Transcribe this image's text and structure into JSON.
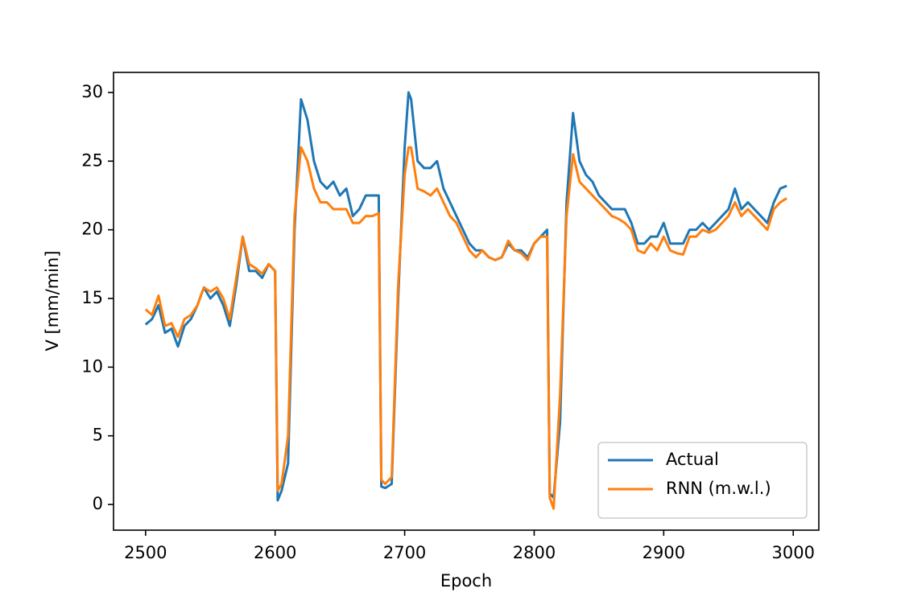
{
  "chart_data": {
    "type": "line",
    "x_label": "Epoch",
    "y_label": "V [mm/min]",
    "x": [
      2500,
      2505,
      2510,
      2515,
      2520,
      2525,
      2530,
      2535,
      2540,
      2545,
      2550,
      2555,
      2560,
      2565,
      2570,
      2575,
      2580,
      2585,
      2590,
      2595,
      2600,
      2602,
      2605,
      2610,
      2615,
      2620,
      2625,
      2630,
      2635,
      2640,
      2645,
      2650,
      2655,
      2660,
      2665,
      2670,
      2675,
      2680,
      2682,
      2685,
      2690,
      2695,
      2700,
      2703,
      2705,
      2710,
      2715,
      2720,
      2725,
      2730,
      2735,
      2740,
      2745,
      2750,
      2755,
      2760,
      2765,
      2770,
      2775,
      2780,
      2785,
      2790,
      2795,
      2800,
      2805,
      2810,
      2812,
      2815,
      2820,
      2825,
      2830,
      2835,
      2840,
      2845,
      2850,
      2855,
      2860,
      2865,
      2870,
      2875,
      2880,
      2885,
      2890,
      2895,
      2900,
      2905,
      2910,
      2915,
      2920,
      2925,
      2930,
      2935,
      2940,
      2945,
      2950,
      2955,
      2960,
      2965,
      2970,
      2975,
      2980,
      2985,
      2990,
      2995
    ],
    "series": [
      {
        "name": "Actual",
        "color": "#1f77b4",
        "values": [
          13.1,
          13.5,
          14.5,
          12.5,
          12.8,
          11.5,
          13,
          13.5,
          14.5,
          15.8,
          15,
          15.5,
          14.5,
          13,
          16,
          19.5,
          17,
          17,
          16.5,
          17.5,
          17,
          0.3,
          1,
          3,
          20,
          29.5,
          28,
          25,
          23.5,
          23,
          23.5,
          22.5,
          23,
          21,
          21.5,
          22.5,
          22.5,
          22.5,
          1.3,
          1.2,
          1.5,
          15,
          26,
          30,
          29.5,
          25,
          24.5,
          24.5,
          25,
          23,
          22,
          21,
          20,
          19,
          18.5,
          18.5,
          18,
          17.8,
          18,
          19,
          18.5,
          18.5,
          18,
          19,
          19.5,
          20,
          0.8,
          0.5,
          6,
          22,
          28.5,
          25,
          24,
          23.5,
          22.5,
          22,
          21.5,
          21.5,
          21.5,
          20.5,
          19,
          19,
          19.5,
          19.5,
          20.5,
          19,
          19,
          19,
          20,
          20,
          20.5,
          20,
          20.5,
          21,
          21.5,
          23,
          21.5,
          22,
          21.5,
          21,
          20.5,
          22,
          23,
          23.2
        ]
      },
      {
        "name": "RNN (m.w.l.)",
        "color": "#ff7f0e",
        "values": [
          14.2,
          13.8,
          15.2,
          13,
          13.2,
          12.2,
          13.5,
          13.8,
          14.5,
          15.8,
          15.5,
          15.8,
          15,
          13.5,
          16.5,
          19.5,
          17.5,
          17.2,
          16.8,
          17.5,
          17,
          1,
          1.5,
          5,
          21,
          26,
          25,
          23,
          22,
          22,
          21.5,
          21.5,
          21.5,
          20.5,
          20.5,
          21,
          21,
          21.2,
          1.8,
          1.5,
          2,
          16,
          24,
          26,
          26,
          23,
          22.8,
          22.5,
          23,
          22,
          21,
          20.5,
          19.5,
          18.5,
          18,
          18.5,
          18,
          17.8,
          18,
          19.2,
          18.5,
          18.3,
          17.8,
          19,
          19.5,
          19.5,
          0.5,
          -0.3,
          8,
          21,
          25.5,
          23.5,
          23,
          22.5,
          22,
          21.5,
          21,
          20.8,
          20.5,
          20,
          18.5,
          18.3,
          19,
          18.5,
          19.5,
          18.5,
          18.3,
          18.2,
          19.5,
          19.5,
          20,
          19.8,
          20,
          20.5,
          21,
          22,
          21,
          21.5,
          21,
          20.5,
          20,
          21.5,
          22,
          22.3
        ]
      }
    ],
    "xlim": [
      2475.25,
      3019.75
    ],
    "xticks": [
      2500,
      2600,
      2700,
      2800,
      2900,
      3000
    ],
    "ylim": [
      -1.87,
      31.46
    ],
    "yticks": [
      0,
      5,
      10,
      15,
      20,
      25,
      30
    ],
    "legend": "lower right",
    "grid": false
  }
}
